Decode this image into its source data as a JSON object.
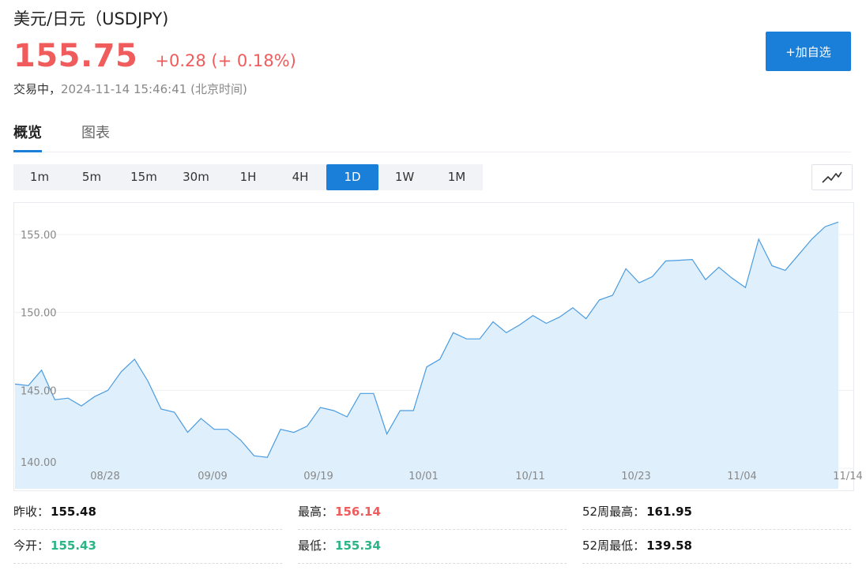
{
  "header": {
    "title": "美元/日元（USDJPY)",
    "price": "155.75",
    "change": "+0.28 (+ 0.18%)",
    "status_label": "交易中，",
    "timestamp": "2024-11-14 15:46:41 (北京时间)",
    "add_button_label": "+加自选",
    "price_color": "#f05b5b",
    "accent_color": "#1a7fd8"
  },
  "tabs": [
    {
      "label": "概览",
      "active": true
    },
    {
      "label": "图表",
      "active": false
    }
  ],
  "ranges": [
    {
      "label": "1m",
      "active": false
    },
    {
      "label": "5m",
      "active": false
    },
    {
      "label": "15m",
      "active": false
    },
    {
      "label": "30m",
      "active": false
    },
    {
      "label": "1H",
      "active": false
    },
    {
      "label": "4H",
      "active": false
    },
    {
      "label": "1D",
      "active": true
    },
    {
      "label": "1W",
      "active": false
    },
    {
      "label": "1M",
      "active": false
    }
  ],
  "chart_toggle_icon": "line-chart-icon",
  "chart_data": {
    "type": "area",
    "series": [
      {
        "values": [
          145.4,
          145.3,
          146.3,
          144.4,
          144.5,
          144.0,
          144.6,
          145.0,
          146.2,
          147.0,
          145.6,
          143.8,
          143.6,
          142.3,
          143.2,
          142.5,
          142.5,
          141.8,
          140.8,
          140.7,
          142.5,
          142.3,
          142.7,
          143.9,
          143.7,
          143.3,
          144.8,
          144.8,
          142.2,
          143.7,
          143.7,
          146.5,
          147.0,
          148.7,
          148.3,
          148.3,
          149.4,
          148.7,
          149.2,
          149.8,
          149.3,
          149.7,
          150.3,
          149.6,
          150.8,
          151.1,
          152.8,
          151.9,
          152.3,
          153.3,
          153.35,
          153.4,
          152.1,
          152.9,
          152.2,
          151.6,
          154.7,
          153.0,
          152.7,
          153.7,
          154.7,
          155.5,
          155.8
        ]
      }
    ],
    "x_tick_labels": [
      "08/28",
      "09/09",
      "09/19",
      "10/01",
      "10/11",
      "10/23",
      "11/04",
      "11/14"
    ],
    "y_ticks": [
      140.0,
      145.0,
      150.0,
      155.0
    ],
    "y_tick_labels": [
      "140.00",
      "145.00",
      "150.00",
      "155.00"
    ],
    "ylim": [
      140.0,
      157.0
    ],
    "line_color": "#4a9be0",
    "fill_color": "#dceefc",
    "grid": true
  },
  "stats": [
    {
      "label": "昨收：",
      "value": "155.48",
      "tone": "neutral"
    },
    {
      "label": "最高：",
      "value": "156.14",
      "tone": "up"
    },
    {
      "label": "52周最高：",
      "value": "161.95",
      "tone": "neutral"
    },
    {
      "label": "今开：",
      "value": "155.43",
      "tone": "down"
    },
    {
      "label": "最低：",
      "value": "155.34",
      "tone": "down"
    },
    {
      "label": "52周最低：",
      "value": "139.58",
      "tone": "neutral"
    }
  ]
}
